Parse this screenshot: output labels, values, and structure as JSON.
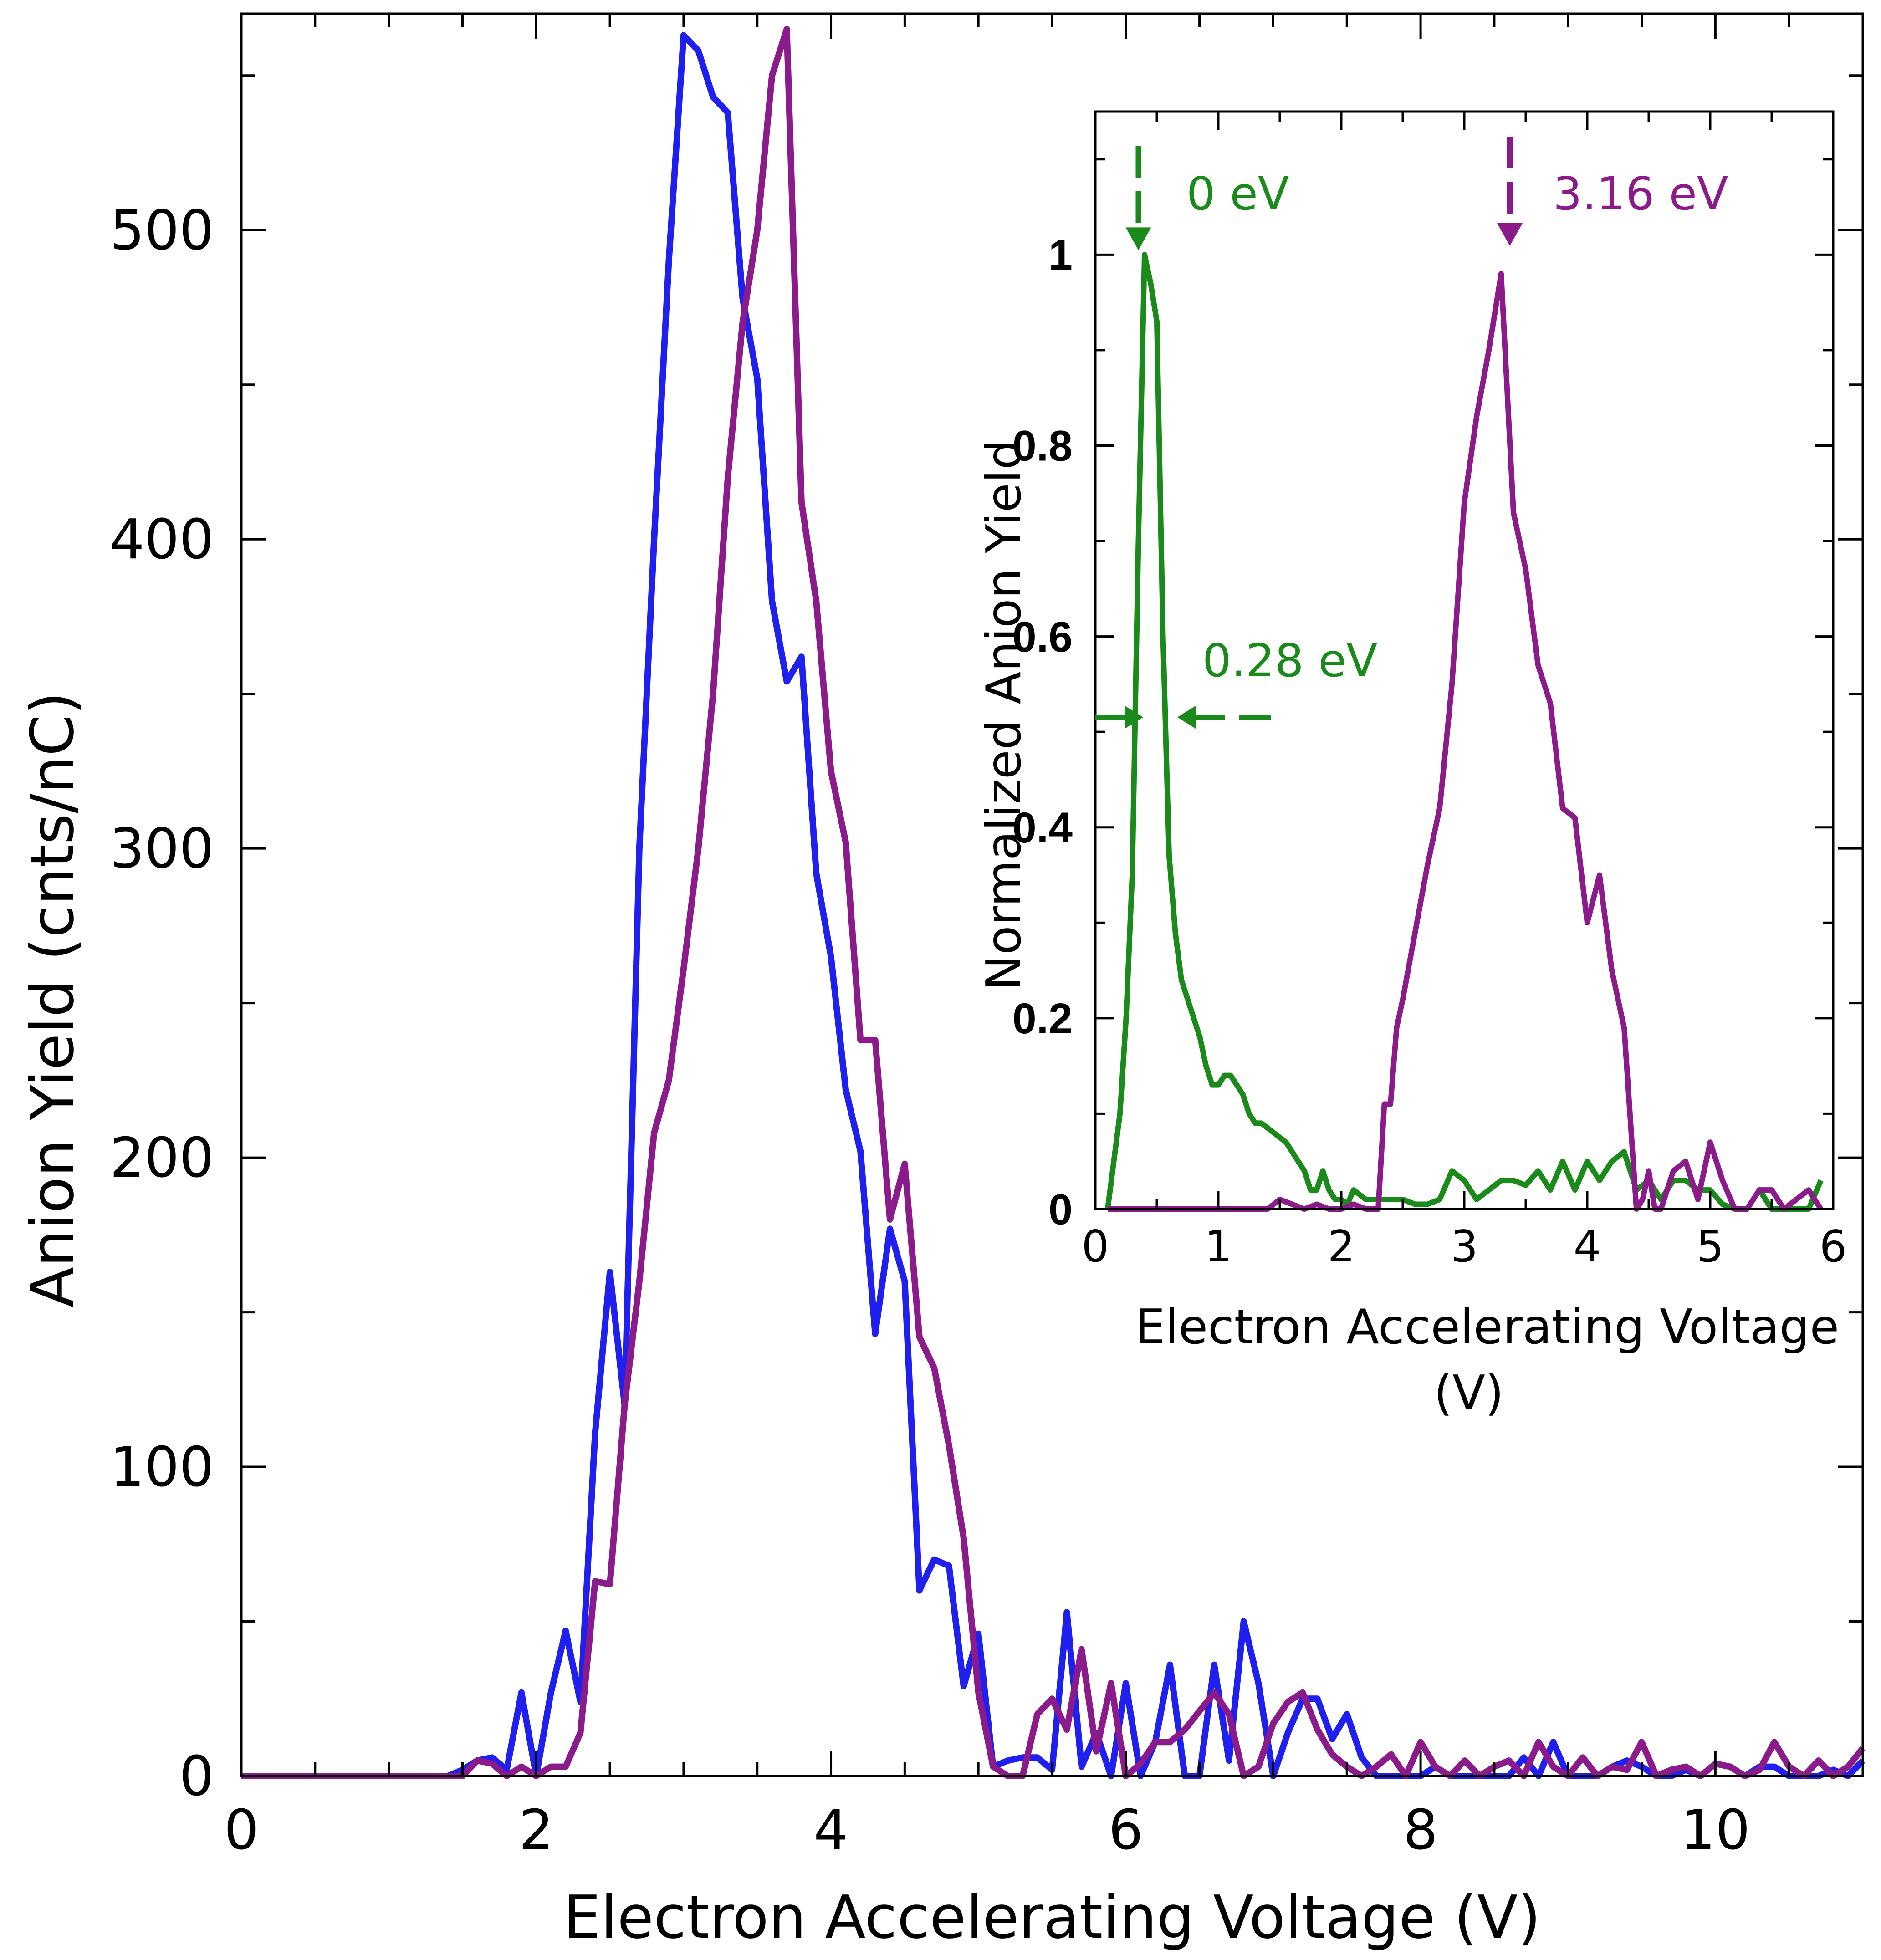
{
  "chart_data": [
    {
      "type": "line",
      "name": "main",
      "title": "",
      "xlabel": "Electron Accelerating Voltage (V)",
      "ylabel": "Anion Yield (cnts/nC)",
      "xlim": [
        0,
        11
      ],
      "ylim": [
        0,
        570
      ],
      "xticks": [
        0,
        2,
        4,
        6,
        8,
        10
      ],
      "xtick_labels": [
        "0",
        "2",
        "4",
        "6",
        "8",
        "10"
      ],
      "yticks": [
        0,
        100,
        200,
        300,
        400,
        500
      ],
      "ytick_labels": [
        "0",
        "100",
        "200",
        "300",
        "400",
        "500"
      ],
      "grid": false,
      "series": [
        {
          "name": "blue",
          "color": "#1f1ff0",
          "x": [
            0,
            1.4,
            1.5,
            1.6,
            1.7,
            1.8,
            1.9,
            2.0,
            2.1,
            2.2,
            2.3,
            2.4,
            2.5,
            2.6,
            2.7,
            2.8,
            2.9,
            3.0,
            3.1,
            3.2,
            3.3,
            3.4,
            3.5,
            3.6,
            3.7,
            3.8,
            3.9,
            4.0,
            4.1,
            4.2,
            4.3,
            4.4,
            4.5,
            4.6,
            4.7,
            4.8,
            4.9,
            5.0,
            5.1,
            5.2,
            5.3,
            5.4,
            5.5,
            5.6,
            5.7,
            5.8,
            5.9,
            6.0,
            6.1,
            6.2,
            6.3,
            6.4,
            6.5,
            6.6,
            6.7,
            6.8,
            6.9,
            7.0,
            7.1,
            7.2,
            7.3,
            7.4,
            7.5,
            7.6,
            7.7,
            7.8,
            7.9,
            8.0,
            8.1,
            8.2,
            8.3,
            8.4,
            8.5,
            8.6,
            8.7,
            8.8,
            8.9,
            9.0,
            9.1,
            9.2,
            9.3,
            9.4,
            9.5,
            9.6,
            9.7,
            9.8,
            9.9,
            10.0,
            10.1,
            10.2,
            10.3,
            10.4,
            10.5,
            10.6,
            10.7,
            10.8,
            10.9,
            11.0
          ],
          "y": [
            0,
            0,
            2,
            5,
            6,
            2,
            27,
            0,
            27,
            47,
            24,
            111,
            163,
            120,
            300,
            400,
            490,
            563,
            558,
            543,
            538,
            478,
            452,
            380,
            354,
            362,
            292,
            265,
            222,
            202,
            143,
            177,
            160,
            60,
            70,
            68,
            29,
            46,
            3,
            5,
            6,
            6,
            2,
            53,
            3,
            14,
            0,
            30,
            0,
            11,
            36,
            0,
            0,
            36,
            5,
            50,
            30,
            0,
            14,
            25,
            25,
            12,
            20,
            6,
            0,
            0,
            0,
            0,
            3,
            0,
            0,
            0,
            0,
            0,
            6,
            0,
            11,
            0,
            0,
            0,
            3,
            5,
            3,
            0,
            0,
            2,
            0,
            4,
            3,
            0,
            3,
            3,
            0,
            0,
            0,
            2,
            0,
            5
          ]
        },
        {
          "name": "purple",
          "color": "#8b1a8b",
          "x": [
            0,
            1.4,
            1.5,
            1.6,
            1.7,
            1.8,
            1.9,
            2.0,
            2.1,
            2.2,
            2.3,
            2.4,
            2.5,
            2.6,
            2.7,
            2.8,
            2.9,
            3.0,
            3.1,
            3.2,
            3.3,
            3.4,
            3.5,
            3.6,
            3.7,
            3.8,
            3.9,
            4.0,
            4.1,
            4.2,
            4.3,
            4.4,
            4.5,
            4.6,
            4.7,
            4.8,
            4.9,
            5.0,
            5.1,
            5.2,
            5.3,
            5.4,
            5.5,
            5.6,
            5.7,
            5.8,
            5.9,
            6.0,
            6.1,
            6.2,
            6.3,
            6.4,
            6.5,
            6.6,
            6.7,
            6.8,
            6.9,
            7.0,
            7.1,
            7.2,
            7.3,
            7.4,
            7.5,
            7.6,
            7.7,
            7.8,
            7.9,
            8.0,
            8.1,
            8.2,
            8.3,
            8.4,
            8.5,
            8.6,
            8.7,
            8.8,
            8.9,
            9.0,
            9.1,
            9.2,
            9.3,
            9.4,
            9.5,
            9.6,
            9.7,
            9.8,
            9.9,
            10.0,
            10.1,
            10.2,
            10.3,
            10.4,
            10.5,
            10.6,
            10.7,
            10.8,
            10.9,
            11.0
          ],
          "y": [
            0,
            0,
            0,
            5,
            4,
            0,
            3,
            0,
            3,
            3,
            14,
            63,
            62,
            120,
            160,
            208,
            225,
            261,
            300,
            350,
            420,
            470,
            500,
            550,
            565,
            412,
            380,
            325,
            302,
            238,
            238,
            180,
            198,
            142,
            132,
            107,
            77,
            27,
            3,
            0,
            0,
            20,
            25,
            15,
            41,
            8,
            30,
            0,
            4,
            11,
            11,
            15,
            21,
            27,
            20,
            0,
            3,
            17,
            24,
            27,
            15,
            7,
            3,
            0,
            3,
            7,
            0,
            11,
            3,
            0,
            5,
            0,
            3,
            5,
            0,
            11,
            3,
            0,
            6,
            0,
            3,
            2,
            11,
            0,
            2,
            3,
            0,
            4,
            3,
            0,
            2,
            11,
            3,
            0,
            5,
            0,
            3,
            9
          ]
        }
      ]
    },
    {
      "type": "line",
      "name": "inset",
      "title": "",
      "xlabel_line1": "Electron Accelerating Voltage",
      "xlabel_line2": "(V)",
      "ylabel": "Normalized Anion Yield",
      "xlim": [
        0,
        6
      ],
      "ylim": [
        0,
        1.15
      ],
      "xticks": [
        0,
        1,
        2,
        3,
        4,
        5,
        6
      ],
      "xtick_labels": [
        "0",
        "1",
        "2",
        "3",
        "4",
        "5",
        "6"
      ],
      "yticks": [
        0,
        0.2,
        0.4,
        0.6,
        0.8,
        1
      ],
      "ytick_labels": [
        "0",
        "0.2",
        "0.4",
        "0.6",
        "0.8",
        "1"
      ],
      "grid": false,
      "series": [
        {
          "name": "green",
          "color": "#1a8a1a",
          "x": [
            0.1,
            0.15,
            0.2,
            0.25,
            0.3,
            0.35,
            0.4,
            0.45,
            0.5,
            0.55,
            0.6,
            0.65,
            0.7,
            0.75,
            0.8,
            0.85,
            0.9,
            0.95,
            1.0,
            1.05,
            1.1,
            1.15,
            1.2,
            1.25,
            1.3,
            1.35,
            1.4,
            1.45,
            1.5,
            1.55,
            1.6,
            1.65,
            1.7,
            1.75,
            1.8,
            1.85,
            1.9,
            1.95,
            2.0,
            2.05,
            2.1,
            2.2,
            2.3,
            2.4,
            2.5,
            2.6,
            2.7,
            2.8,
            2.9,
            3.0,
            3.1,
            3.2,
            3.3,
            3.4,
            3.5,
            3.6,
            3.7,
            3.8,
            3.9,
            4.0,
            4.1,
            4.2,
            4.3,
            4.4,
            4.5,
            4.6,
            4.7,
            4.8,
            4.9,
            5.0,
            5.1,
            5.2,
            5.3,
            5.4,
            5.5,
            5.6,
            5.7,
            5.8,
            5.9
          ],
          "y": [
            0.0,
            0.05,
            0.1,
            0.2,
            0.35,
            0.7,
            1.0,
            0.97,
            0.93,
            0.6,
            0.37,
            0.29,
            0.24,
            0.22,
            0.2,
            0.18,
            0.15,
            0.13,
            0.13,
            0.14,
            0.14,
            0.13,
            0.12,
            0.1,
            0.09,
            0.09,
            0.085,
            0.08,
            0.075,
            0.07,
            0.06,
            0.05,
            0.04,
            0.02,
            0.02,
            0.04,
            0.02,
            0.01,
            0.01,
            0.005,
            0.02,
            0.01,
            0.01,
            0.01,
            0.01,
            0.005,
            0.005,
            0.01,
            0.04,
            0.03,
            0.01,
            0.02,
            0.03,
            0.03,
            0.025,
            0.04,
            0.02,
            0.05,
            0.02,
            0.05,
            0.03,
            0.05,
            0.06,
            0.02,
            0.03,
            0.01,
            0.03,
            0.03,
            0.02,
            0.02,
            0.005,
            0.0,
            0.0,
            0.02,
            0.0,
            0.0,
            0.0,
            0.0,
            0.03
          ]
        },
        {
          "name": "purple",
          "color": "#8b1a8b",
          "x": [
            0.1,
            0.5,
            1.0,
            1.4,
            1.5,
            1.6,
            1.7,
            1.8,
            1.9,
            2.0,
            2.1,
            2.2,
            2.3,
            2.35,
            2.4,
            2.45,
            2.5,
            2.6,
            2.7,
            2.8,
            2.9,
            3.0,
            3.1,
            3.2,
            3.3,
            3.4,
            3.5,
            3.6,
            3.7,
            3.8,
            3.9,
            4.0,
            4.1,
            4.2,
            4.3,
            4.4,
            4.45,
            4.5,
            4.55,
            4.6,
            4.7,
            4.8,
            4.9,
            5.0,
            5.1,
            5.2,
            5.3,
            5.4,
            5.5,
            5.6,
            5.7,
            5.8,
            5.9
          ],
          "y": [
            0.0,
            0.0,
            0.0,
            0.0,
            0.01,
            0.005,
            0.0,
            0.005,
            0.0,
            0.0,
            0.005,
            0.0,
            0.0,
            0.11,
            0.11,
            0.19,
            0.22,
            0.29,
            0.36,
            0.42,
            0.55,
            0.74,
            0.83,
            0.9,
            0.98,
            0.73,
            0.67,
            0.57,
            0.53,
            0.42,
            0.41,
            0.3,
            0.35,
            0.25,
            0.19,
            0.0,
            0.01,
            0.04,
            0.0,
            0.0,
            0.04,
            0.05,
            0.01,
            0.07,
            0.03,
            0.0,
            0.0,
            0.02,
            0.02,
            0.0,
            0.01,
            0.02,
            0.0
          ]
        }
      ],
      "annotations": [
        {
          "text": "0 eV",
          "color": "#1a8a1a",
          "x": 0.35,
          "y": 1.0
        },
        {
          "text": "3.16 eV",
          "color": "#8b1a8b",
          "x": 3.3,
          "y": 1.0
        },
        {
          "text": "0.28 eV",
          "color": "#1a8a1a",
          "x": 0.35,
          "y": 0.52
        }
      ]
    }
  ]
}
